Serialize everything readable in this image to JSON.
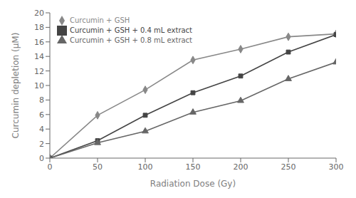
{
  "chart_data": {
    "type": "line",
    "x": [
      0,
      50,
      100,
      150,
      200,
      250,
      300
    ],
    "series": [
      {
        "name": "Curcumin + GSH",
        "color": "#888888",
        "values": [
          0,
          5.9,
          9.4,
          13.5,
          15.0,
          16.7,
          17.1
        ],
        "marker": "diamond",
        "line_style": "solid"
      },
      {
        "name": "Curcumin + GSH + 0.4 mL extract",
        "color": "#444444",
        "values": [
          0,
          2.4,
          5.9,
          9.0,
          11.3,
          14.6,
          17.0
        ],
        "marker": "square",
        "line_style": "solid"
      },
      {
        "name": "Curcumin + GSH + 0.8 mL extract",
        "color": "#666666",
        "values": [
          0,
          2.1,
          3.7,
          6.3,
          7.9,
          10.9,
          13.2
        ],
        "marker": "triangle",
        "line_style": "solid"
      }
    ],
    "xlabel": "Radiation Dose (Gy)",
    "ylabel": "Curcumin depletion (μM)",
    "xlim": [
      0,
      300
    ],
    "ylim": [
      0,
      20
    ],
    "xticks": [
      0,
      50,
      100,
      150,
      200,
      250,
      300
    ],
    "yticks": [
      0,
      2,
      4,
      6,
      8,
      10,
      12,
      14,
      16,
      18,
      20
    ],
    "grid": false,
    "legend": "upper left"
  }
}
